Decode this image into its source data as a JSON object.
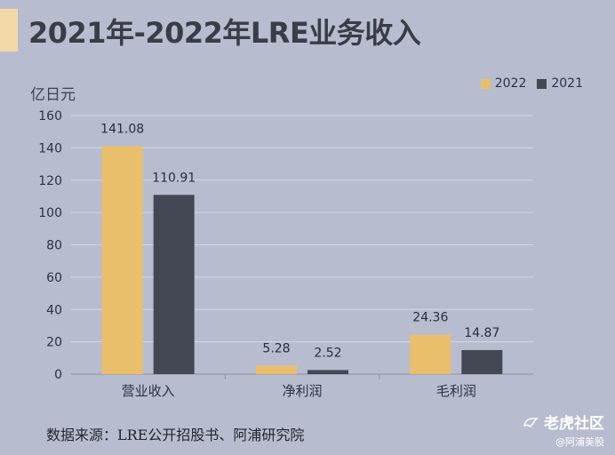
{
  "title": "2021年-2022年LRE业务收入",
  "source": "数据来源：LRE公开招股书、阿浦研究院",
  "watermark": {
    "main": "老虎社区",
    "sub": "@阿浦美股",
    "icon": "tiger-icon"
  },
  "colors": {
    "background": "#b8bccf",
    "series_2022": "#e9bf6c",
    "series_2021": "#444854",
    "accent": "#f3d9a8"
  },
  "chart_data": {
    "type": "bar",
    "unit_label": "亿日元",
    "categories": [
      "营业收入",
      "净利润",
      "毛利润"
    ],
    "series": [
      {
        "name": "2022",
        "values": [
          141.08,
          5.28,
          24.36
        ],
        "labels": [
          "141.08",
          "5.28",
          "24.36"
        ]
      },
      {
        "name": "2021",
        "values": [
          110.91,
          2.52,
          14.87
        ],
        "labels": [
          "110.91",
          "2.52",
          "14.87"
        ]
      }
    ],
    "yticks": [
      "0",
      "20",
      "40",
      "60",
      "80",
      "100",
      "120",
      "140",
      "160"
    ],
    "ylim": [
      0,
      160
    ],
    "grid": true,
    "legend_position": "top-right"
  }
}
